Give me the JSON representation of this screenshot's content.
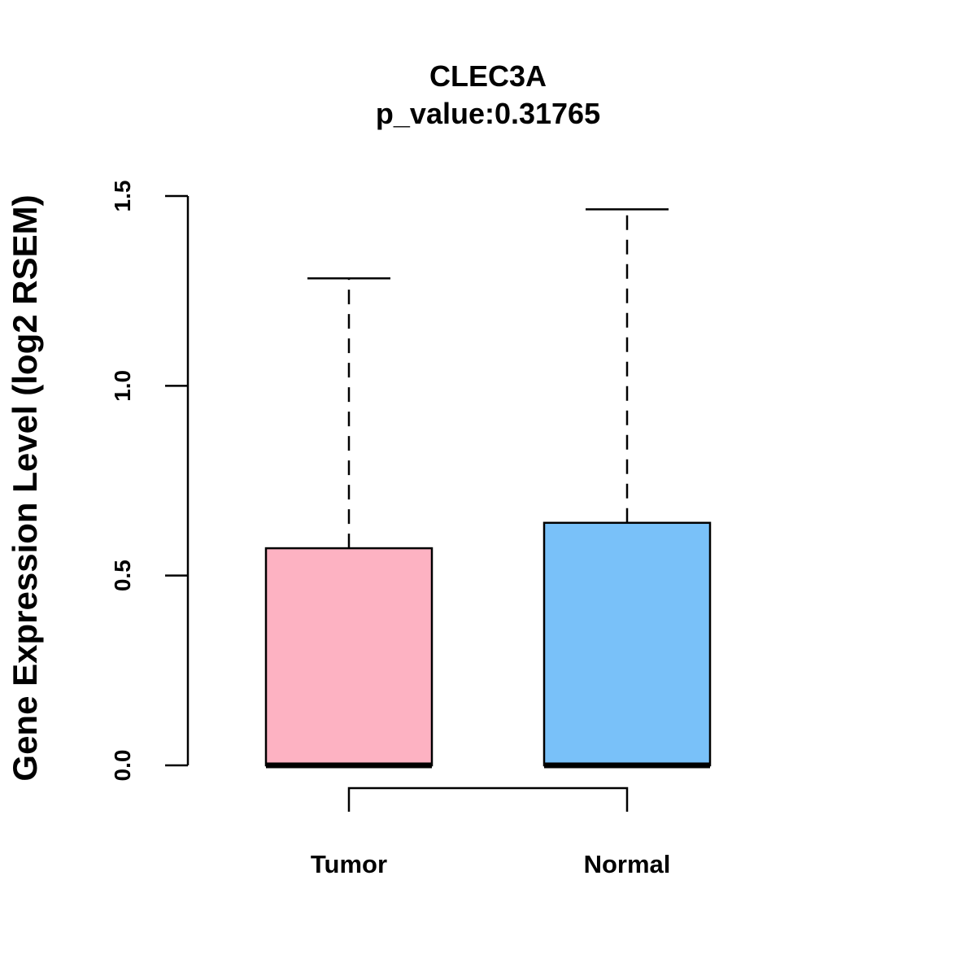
{
  "chart_data": {
    "type": "boxplot",
    "title": "CLEC3A",
    "subtitle": "p_value:0.31765",
    "xlabel": "",
    "ylabel": "Gene Expression Level (log2 RSEM)",
    "ylim": [
      0,
      1.5
    ],
    "yticks": [
      0.0,
      0.5,
      1.0,
      1.5
    ],
    "ytick_labels": [
      "0.0",
      "0.5",
      "1.0",
      "1.5"
    ],
    "grid": false,
    "legend": "none",
    "categories": [
      "Tumor",
      "Normal"
    ],
    "boxes": [
      {
        "name": "Tumor",
        "min": 0.0,
        "q1": 0.0,
        "median": 0.0,
        "q3": 0.572,
        "max": 1.283,
        "color": "#FDB2C2"
      },
      {
        "name": "Normal",
        "min": 0.0,
        "q1": 0.0,
        "median": 0.0,
        "q3": 0.639,
        "max": 1.465,
        "color": "#79C1F9"
      }
    ],
    "comparison_bracket": [
      "Tumor",
      "Normal"
    ]
  }
}
